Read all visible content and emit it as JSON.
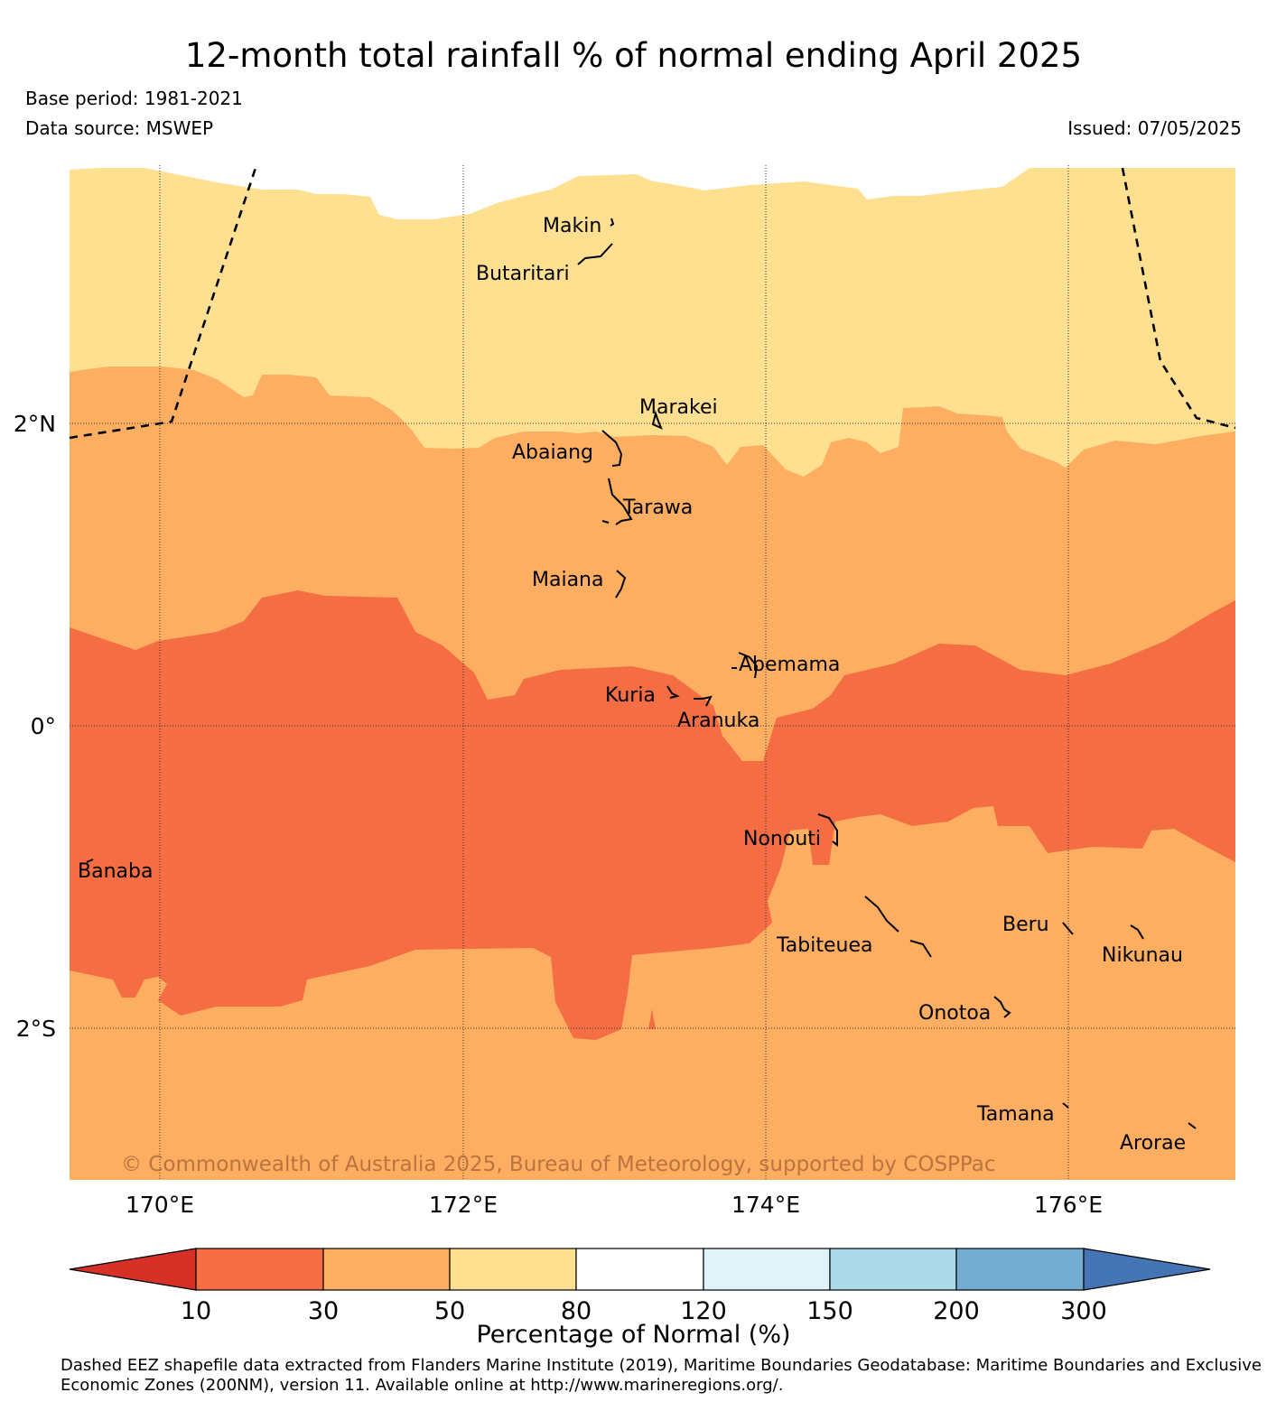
{
  "title": "12-month total rainfall % of normal ending April 2025",
  "base_period": "Base period: 1981-2021",
  "data_source": "Data source: MSWEP",
  "issued": "Issued: 07/05/2025",
  "copyright": "© Commonwealth of Australia 2025, Bureau of Meteorology, supported by COSPPac",
  "map": {
    "lon_labels": [
      "170°E",
      "172°E",
      "174°E",
      "176°E"
    ],
    "lat_labels": [
      "2°N",
      "0°",
      "2°S"
    ],
    "islands": [
      "Makin",
      "Butaritari",
      "Marakei",
      "Abaiang",
      "Tarawa",
      "Maiana",
      "Abemama",
      "Kuria",
      "Aranuka",
      "Nonouti",
      "Banaba",
      "Tabiteuea",
      "Beru",
      "Nikunau",
      "Onotoa",
      "Tamana",
      "Arorae"
    ],
    "category_colors": {
      "below_10": "#d73027",
      "10_30": "#f46d43",
      "30_50": "#fdae61",
      "50_80": "#fee090",
      "80_120": "#ffffff",
      "120_150": "#e0f3f8",
      "150_200": "#abd9e9",
      "200_300": "#74add1",
      "above_300": "#4575b4"
    }
  },
  "colorbar": {
    "ticks": [
      "10",
      "30",
      "50",
      "80",
      "120",
      "150",
      "200",
      "300"
    ],
    "title": "Percentage of Normal (%)"
  },
  "footnote": "Dashed EEZ shapefile data extracted from Flanders Marine Institute (2019), Maritime Boundaries Geodatabase: Maritime Boundaries and Exclusive Economic Zones (200NM), version 11. Available online at http://www.marineregions.org/."
}
